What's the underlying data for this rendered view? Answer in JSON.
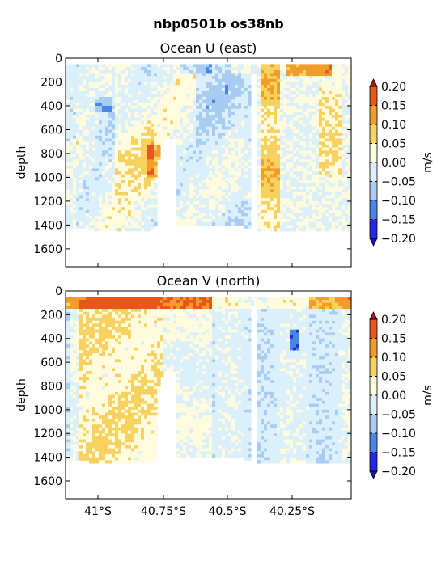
{
  "figure": {
    "suptitle": "nbp0501b os38nb"
  },
  "chart_data": [
    {
      "type": "heatmap",
      "title": "Ocean U (east)",
      "xlabel": "",
      "ylabel": "depth",
      "ylim": [
        1750,
        0
      ],
      "y_ticks": [
        0,
        200,
        400,
        600,
        800,
        1000,
        1200,
        1400,
        1600
      ],
      "x_ticks": [],
      "colorbar": {
        "label": "m/s",
        "ticks": [
          "0.20",
          "0.15",
          "0.10",
          "0.05",
          "0.00",
          "−0.05",
          "−0.10",
          "−0.15",
          "−0.20"
        ]
      },
      "levels": [
        -0.2,
        -0.15,
        -0.1,
        -0.05,
        0,
        0.05,
        0.1,
        0.15,
        0.2
      ]
    },
    {
      "type": "heatmap",
      "title": "Ocean V (north)",
      "xlabel": "",
      "ylabel": "depth",
      "ylim": [
        1750,
        0
      ],
      "y_ticks": [
        0,
        200,
        400,
        600,
        800,
        1000,
        1200,
        1400,
        1600
      ],
      "x_ticks": [
        "41°S",
        "40.75°S",
        "40.5°S",
        "40.25°S"
      ],
      "colorbar": {
        "label": "m/s",
        "ticks": [
          "0.20",
          "0.15",
          "0.10",
          "0.05",
          "0.00",
          "−0.05",
          "−0.10",
          "−0.15",
          "−0.20"
        ]
      },
      "levels": [
        -0.2,
        -0.15,
        -0.1,
        -0.05,
        0,
        0.05,
        0.1,
        0.15,
        0.2
      ]
    }
  ],
  "colors": {
    "bins": [
      "#2727e8",
      "#4a86e8",
      "#a9cdf2",
      "#dcf0fb",
      "#fffbde",
      "#f8d261",
      "#f09d2a",
      "#e8561e"
    ],
    "over": "#a01818",
    "under": "#1616b4"
  }
}
